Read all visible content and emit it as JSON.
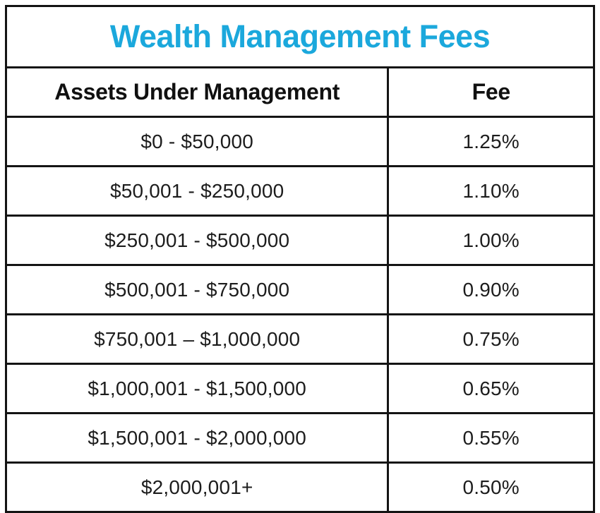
{
  "title": "Wealth Management Fees",
  "colors": {
    "title_text": "#1ba8dc",
    "border": "#141414",
    "body_text": "#1d1d1d",
    "background": "#ffffff"
  },
  "table": {
    "headers": [
      "Assets Under Management",
      "Fee"
    ],
    "rows": [
      [
        "$0 - $50,000",
        "1.25%"
      ],
      [
        "$50,001 - $250,000",
        "1.10%"
      ],
      [
        "$250,001 - $500,000",
        "1.00%"
      ],
      [
        "$500,001 - $750,000",
        "0.90%"
      ],
      [
        "$750,001 – $1,000,000",
        "0.75%"
      ],
      [
        "$1,000,001 - $1,500,000",
        "0.65%"
      ],
      [
        "$1,500,001 - $2,000,000",
        "0.55%"
      ],
      [
        "$2,000,001+",
        "0.50%"
      ]
    ]
  },
  "chart_data": {
    "type": "table",
    "title": "Wealth Management Fees",
    "columns": [
      "Assets Under Management",
      "Fee"
    ],
    "rows": [
      {
        "assets_under_management": "$0 - $50,000",
        "fee_percent": 1.25
      },
      {
        "assets_under_management": "$50,001 - $250,000",
        "fee_percent": 1.1
      },
      {
        "assets_under_management": "$250,001 - $500,000",
        "fee_percent": 1.0
      },
      {
        "assets_under_management": "$500,001 - $750,000",
        "fee_percent": 0.9
      },
      {
        "assets_under_management": "$750,001 – $1,000,000",
        "fee_percent": 0.75
      },
      {
        "assets_under_management": "$1,000,001 - $1,500,000",
        "fee_percent": 0.65
      },
      {
        "assets_under_management": "$1,500,001 - $2,000,000",
        "fee_percent": 0.55
      },
      {
        "assets_under_management": "$2,000,001+",
        "fee_percent": 0.5
      }
    ],
    "layout": {
      "title_position": "top-spanning-row",
      "grid": "full-borders",
      "column_alignment": [
        "center",
        "center"
      ]
    }
  }
}
